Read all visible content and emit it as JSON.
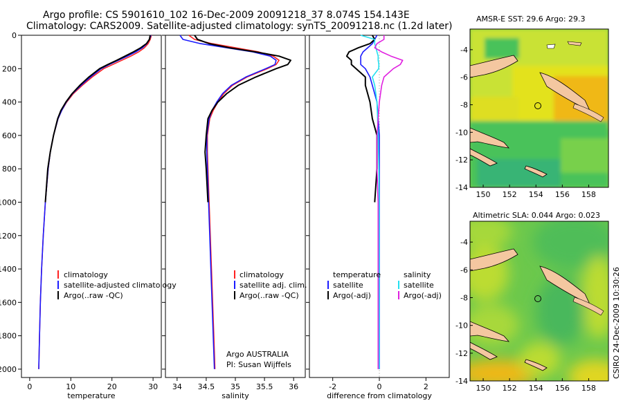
{
  "title_line1": "Argo profile: CS 5901610_102 16-Dec-2009 20091218_37 8.074S 154.143E",
  "title_line2": "Climatology: CARS2009. Satellite-adjusted climatology: synTS_20091218.nc (1.2d later)",
  "stamp": "CSIRO 24-Dec-2009 10:30:26",
  "colors": {
    "climatology": "#ff2020",
    "satellite": "#1a1aff",
    "argo": "#000000",
    "sat_salinity": "#22e0f0",
    "argo_salinity": "#e020e0"
  },
  "chart_data": [
    {
      "type": "line",
      "name": "temperature",
      "xlabel": "temperature",
      "ylabel": "",
      "xlim": [
        -2,
        32
      ],
      "ylim": [
        2050,
        0
      ],
      "xticks": [
        0,
        10,
        20,
        30
      ],
      "yticks": [
        0,
        200,
        400,
        600,
        800,
        1000,
        1200,
        1400,
        1600,
        1800,
        2000
      ],
      "legend": [
        "climatology",
        "satellite-adjusted climatology",
        "Argo(..raw -QC)"
      ],
      "legend_position": "lower-right",
      "series": [
        {
          "name": "climatology",
          "color": "climatology",
          "depth": [
            0,
            25,
            50,
            75,
            100,
            125,
            150,
            175,
            200,
            250,
            300,
            350,
            400,
            450,
            500,
            600,
            700,
            800,
            1000,
            1200,
            1400,
            1600,
            1800,
            2000
          ],
          "values": [
            29.6,
            29.3,
            28.8,
            27.9,
            26.5,
            24.6,
            22.4,
            20.2,
            18.0,
            15.2,
            12.8,
            10.6,
            9.0,
            7.8,
            6.9,
            5.8,
            5.0,
            4.5,
            3.8,
            3.3,
            2.9,
            2.6,
            2.4,
            2.2
          ]
        },
        {
          "name": "satellite-adjusted climatology",
          "color": "satellite",
          "depth": [
            0,
            25,
            50,
            75,
            100,
            125,
            150,
            175,
            200,
            250,
            300,
            350,
            400,
            450,
            500,
            600,
            700,
            800,
            1000,
            1200,
            1400,
            1600,
            1800,
            2000
          ],
          "values": [
            29.5,
            29.1,
            28.5,
            27.4,
            25.8,
            23.8,
            21.6,
            19.4,
            17.4,
            14.8,
            12.5,
            10.4,
            8.9,
            7.8,
            6.9,
            5.8,
            5.0,
            4.5,
            3.8,
            3.3,
            2.9,
            2.6,
            2.4,
            2.2
          ]
        },
        {
          "name": "Argo(..raw -QC)",
          "color": "argo",
          "depth": [
            0,
            25,
            50,
            75,
            100,
            125,
            150,
            175,
            200,
            250,
            300,
            350,
            400,
            450,
            500,
            600,
            700,
            800,
            1000
          ],
          "values": [
            29.3,
            29.1,
            28.4,
            27.0,
            25.2,
            23.2,
            21.2,
            19.0,
            17.0,
            14.4,
            12.2,
            10.3,
            8.8,
            7.6,
            6.8,
            5.8,
            5.0,
            4.4,
            3.8
          ]
        }
      ]
    },
    {
      "type": "line",
      "name": "salinity",
      "xlabel": "salinity",
      "ylabel": "",
      "xlim": [
        33.8,
        36.2
      ],
      "ylim": [
        2050,
        0
      ],
      "xticks": [
        34,
        34.5,
        35,
        35.5,
        36
      ],
      "legend": [
        "climatology",
        "satellite adj. clim.",
        "Argo(..raw -QC)"
      ],
      "legend_position": "lower-right",
      "annotation": [
        "Argo AUSTRALIA",
        "PI: Susan Wijffels"
      ],
      "series": [
        {
          "name": "climatology",
          "color": "climatology",
          "depth": [
            0,
            25,
            50,
            75,
            100,
            125,
            150,
            175,
            200,
            250,
            300,
            350,
            400,
            450,
            500,
            600,
            700,
            800,
            1000,
            1200,
            1400,
            1600,
            1800,
            2000
          ],
          "values": [
            34.2,
            34.3,
            34.6,
            35.0,
            35.4,
            35.65,
            35.75,
            35.7,
            35.55,
            35.2,
            34.95,
            34.8,
            34.7,
            34.62,
            34.56,
            34.52,
            34.52,
            34.53,
            34.55,
            34.57,
            34.59,
            34.61,
            34.63,
            34.65
          ]
        },
        {
          "name": "satellite adj. clim.",
          "color": "satellite",
          "depth": [
            0,
            25,
            50,
            75,
            100,
            125,
            150,
            175,
            200,
            250,
            300,
            350,
            400,
            450,
            500,
            600,
            700,
            800,
            1000,
            1200,
            1400,
            1600,
            1800,
            2000
          ],
          "values": [
            34.05,
            34.1,
            34.4,
            34.85,
            35.3,
            35.6,
            35.7,
            35.68,
            35.52,
            35.18,
            34.93,
            34.78,
            34.68,
            34.6,
            34.55,
            34.51,
            34.51,
            34.52,
            34.54,
            34.56,
            34.58,
            34.6,
            34.62,
            34.64
          ]
        },
        {
          "name": "Argo(..raw -QC)",
          "color": "argo",
          "depth": [
            0,
            25,
            50,
            75,
            100,
            125,
            150,
            175,
            200,
            250,
            300,
            350,
            400,
            450,
            500,
            600,
            700,
            800,
            1000
          ],
          "values": [
            34.3,
            34.35,
            34.55,
            34.9,
            35.35,
            35.75,
            35.95,
            35.9,
            35.7,
            35.35,
            35.05,
            34.85,
            34.7,
            34.6,
            34.53,
            34.5,
            34.48,
            34.5,
            34.53
          ]
        }
      ]
    },
    {
      "type": "line",
      "name": "difference from climatology",
      "xlabel": "difference from climatology",
      "ylabel": "",
      "xlim": [
        -3,
        3
      ],
      "ylim": [
        2050,
        0
      ],
      "xticks": [
        -2,
        0,
        2
      ],
      "legend_temperature_header": "temperature",
      "legend_salinity_header": "salinity",
      "legend": [
        "satellite",
        "Argo(-adj)",
        "satellite",
        "Argo(-adj)"
      ],
      "legend_position": "lower-right",
      "series": [
        {
          "name": "satellite",
          "group": "temperature",
          "color": "satellite",
          "depth": [
            0,
            25,
            50,
            75,
            100,
            125,
            150,
            175,
            200,
            250,
            300,
            400,
            600,
            800,
            1000,
            1500,
            2000
          ],
          "values": [
            -0.1,
            -0.2,
            -0.3,
            -0.5,
            -0.7,
            -0.8,
            -0.8,
            -0.8,
            -0.6,
            -0.4,
            -0.3,
            -0.1,
            0,
            0,
            0,
            0,
            0
          ]
        },
        {
          "name": "Argo(-adj)",
          "group": "temperature",
          "color": "argo",
          "depth": [
            0,
            25,
            50,
            75,
            100,
            125,
            150,
            175,
            200,
            250,
            300,
            400,
            500,
            600,
            700,
            800,
            1000
          ],
          "values": [
            -0.3,
            -0.2,
            -0.4,
            -0.9,
            -1.3,
            -1.4,
            -1.2,
            -1.2,
            -1.0,
            -0.6,
            -0.6,
            -0.4,
            -0.3,
            -0.1,
            -0.1,
            -0.1,
            -0.2
          ]
        },
        {
          "name": "satellite",
          "group": "salinity",
          "color": "sat_salinity",
          "depth": [
            0,
            25,
            50,
            75,
            100,
            125,
            150,
            175,
            200,
            250,
            300,
            400,
            600,
            800,
            1000,
            1500,
            2000
          ],
          "values": [
            -0.8,
            -0.2,
            -0.2,
            -0.15,
            -0.1,
            -0.05,
            -0.05,
            -0.02,
            -0.03,
            -0.3,
            -0.2,
            -0.1,
            -0.05,
            -0.02,
            -0.01,
            -0.01,
            -0.01
          ]
        },
        {
          "name": "Argo(-adj)",
          "group": "salinity",
          "color": "argo_salinity",
          "depth": [
            0,
            25,
            50,
            75,
            100,
            125,
            150,
            175,
            200,
            250,
            300,
            400,
            600,
            800,
            1000,
            1500,
            2000
          ],
          "values": [
            0.2,
            0.2,
            -0.1,
            -0.2,
            0.1,
            0.5,
            1.0,
            0.9,
            0.6,
            0.2,
            0.1,
            0,
            -0.1,
            -0.1,
            -0.05,
            -0.05,
            -0.05
          ]
        }
      ]
    },
    {
      "type": "heatmap",
      "name": "sst map",
      "title": "AMSR-E SST: 29.6  Argo: 29.3",
      "xlim": [
        149,
        159.5
      ],
      "ylim": [
        -14,
        -2.5
      ],
      "xticks": [
        150,
        152,
        154,
        156,
        158
      ],
      "yticks": [
        -4,
        -6,
        -8,
        -10,
        -12,
        -14
      ],
      "profile_location": {
        "lon": 154.143,
        "lat": -8.074
      },
      "colormap": "green-yellow-orange (higher SST = orange)"
    },
    {
      "type": "heatmap",
      "name": "sla map",
      "title": "Altimetric SLA: 0.044  Argo: 0.023",
      "xlim": [
        149,
        159.5
      ],
      "ylim": [
        -14,
        -2.5
      ],
      "xticks": [
        150,
        152,
        154,
        156,
        158
      ],
      "yticks": [
        -4,
        -6,
        -8,
        -10,
        -12,
        -14
      ],
      "profile_location": {
        "lon": 154.143,
        "lat": -8.074
      },
      "colormap": "green-yellow-orange (higher SLA = yellow/orange)"
    }
  ]
}
